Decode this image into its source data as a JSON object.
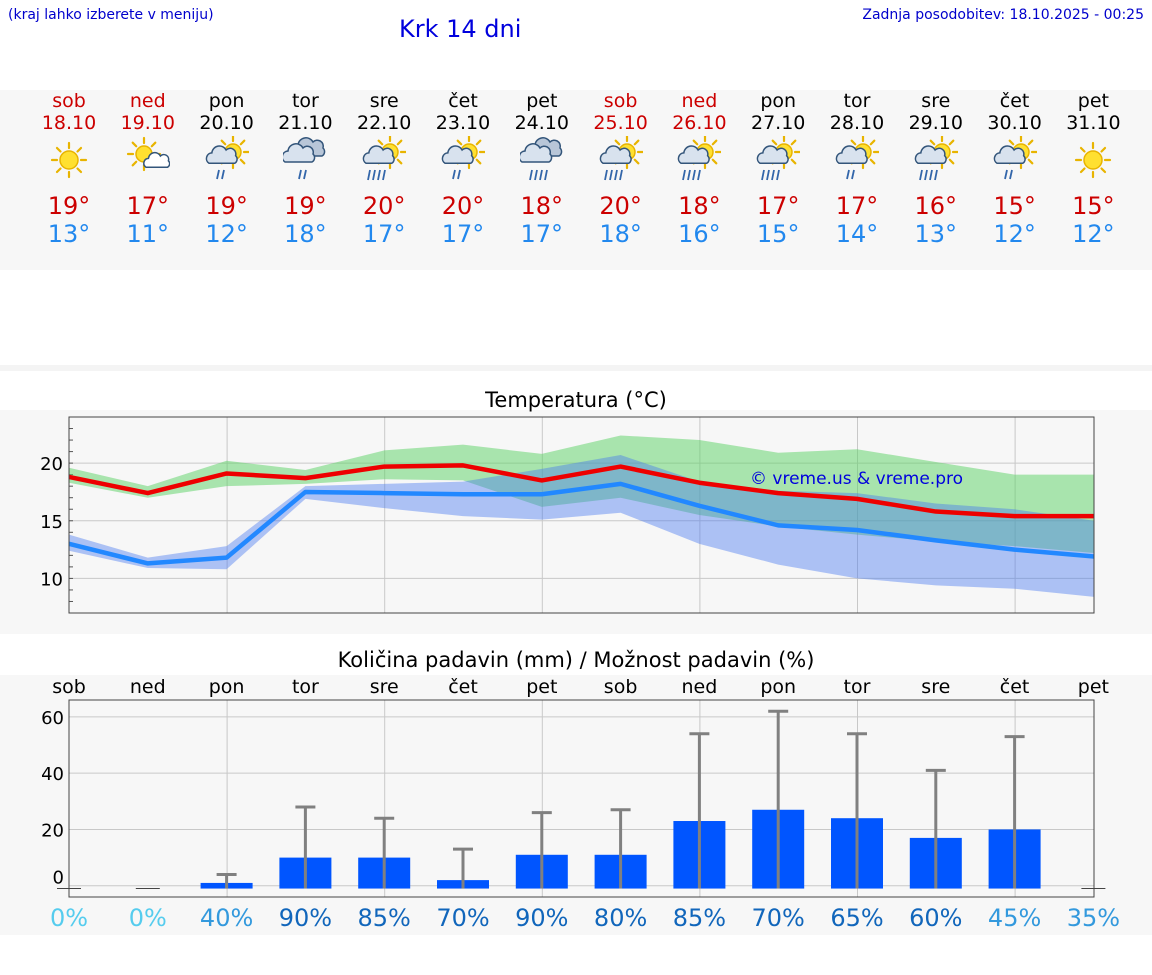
{
  "header": {
    "hint": "(kraj lahko izberete v meniju)",
    "title": "Krk 14 dni",
    "updated": "Zadnja posodobitev: 18.10.2025 - 00:25"
  },
  "colors": {
    "weekend": "#cc0000",
    "weekday": "#000000",
    "max": "#ee0000",
    "min": "#2288ff",
    "bar": "#0055ff"
  },
  "days": [
    {
      "name": "sob",
      "date": "18.10",
      "weekend": true,
      "icon": "sun-icon",
      "max": "19°",
      "min": "13°"
    },
    {
      "name": "ned",
      "date": "19.10",
      "weekend": true,
      "icon": "sun-cloud-icon",
      "max": "17°",
      "min": "11°"
    },
    {
      "name": "pon",
      "date": "20.10",
      "weekend": false,
      "icon": "sun-cloud-rain-icon",
      "max": "19°",
      "min": "12°"
    },
    {
      "name": "tor",
      "date": "21.10",
      "weekend": false,
      "icon": "cloud-rain-icon",
      "max": "19°",
      "min": "18°"
    },
    {
      "name": "sre",
      "date": "22.10",
      "weekend": false,
      "icon": "sun-cloud-heavy-rain-icon",
      "max": "20°",
      "min": "17°"
    },
    {
      "name": "čet",
      "date": "23.10",
      "weekend": false,
      "icon": "sun-cloud-rain-icon",
      "max": "20°",
      "min": "17°"
    },
    {
      "name": "pet",
      "date": "24.10",
      "weekend": false,
      "icon": "cloud-heavy-rain-icon",
      "max": "18°",
      "min": "17°"
    },
    {
      "name": "sob",
      "date": "25.10",
      "weekend": true,
      "icon": "sun-cloud-heavy-rain-icon",
      "max": "20°",
      "min": "18°"
    },
    {
      "name": "ned",
      "date": "26.10",
      "weekend": true,
      "icon": "sun-cloud-heavy-rain-icon",
      "max": "18°",
      "min": "16°"
    },
    {
      "name": "pon",
      "date": "27.10",
      "weekend": false,
      "icon": "sun-cloud-heavy-rain-icon",
      "max": "17°",
      "min": "15°"
    },
    {
      "name": "tor",
      "date": "28.10",
      "weekend": false,
      "icon": "sun-cloud-rain-icon",
      "max": "17°",
      "min": "14°"
    },
    {
      "name": "sre",
      "date": "29.10",
      "weekend": false,
      "icon": "sun-cloud-heavy-rain-icon",
      "max": "16°",
      "min": "13°"
    },
    {
      "name": "čet",
      "date": "30.10",
      "weekend": false,
      "icon": "sun-cloud-rain-icon",
      "max": "15°",
      "min": "12°"
    },
    {
      "name": "pet",
      "date": "31.10",
      "weekend": false,
      "icon": "sun-icon",
      "max": "15°",
      "min": "12°"
    }
  ],
  "chart_data": [
    {
      "type": "line",
      "title": "Temperatura (°C)",
      "watermark": "© vreme.us & vreme.pro",
      "ylim": [
        7,
        24
      ],
      "yticks": [
        10,
        15,
        20
      ],
      "grid": true,
      "categories": [
        "sob",
        "ned",
        "pon",
        "tor",
        "sre",
        "čet",
        "pet",
        "sob",
        "ned",
        "pon",
        "tor",
        "sre",
        "čet",
        "pet"
      ],
      "series": [
        {
          "name": "max",
          "values": [
            18.8,
            17.4,
            19.1,
            18.7,
            19.7,
            19.8,
            18.5,
            19.7,
            18.3,
            17.4,
            16.9,
            15.8,
            15.4,
            15.4
          ],
          "band_low": [
            18.3,
            17.0,
            18.0,
            18.2,
            18.6,
            18.5,
            16.2,
            17.0,
            15.5,
            14.5,
            13.8,
            13.2,
            12.8,
            12.2
          ],
          "band_high": [
            19.6,
            18.0,
            20.2,
            19.4,
            21.1,
            21.6,
            20.8,
            22.4,
            22.0,
            20.9,
            21.2,
            20.1,
            19.0,
            19.0
          ]
        },
        {
          "name": "min",
          "values": [
            13.0,
            11.3,
            11.8,
            17.5,
            17.4,
            17.3,
            17.3,
            18.2,
            16.3,
            14.6,
            14.2,
            13.3,
            12.5,
            11.9
          ],
          "band_low": [
            12.4,
            10.9,
            10.8,
            16.9,
            16.1,
            15.4,
            15.1,
            15.7,
            13.0,
            11.2,
            10.0,
            9.4,
            9.1,
            8.4
          ],
          "band_high": [
            13.8,
            11.8,
            12.8,
            18.0,
            18.2,
            18.4,
            19.5,
            20.7,
            18.4,
            17.6,
            17.4,
            16.5,
            16.0,
            15.0
          ]
        }
      ]
    },
    {
      "type": "bar",
      "title": "Količina padavin (mm) / Možnost padavin (%)",
      "ylim": [
        -4,
        66
      ],
      "yticks": [
        0,
        20,
        40,
        60
      ],
      "grid": true,
      "categories": [
        "sob",
        "ned",
        "pon",
        "tor",
        "sre",
        "čet",
        "pet",
        "sob",
        "ned",
        "pon",
        "tor",
        "sre",
        "čet",
        "pet"
      ],
      "values": [
        0,
        0,
        1,
        10,
        10,
        2,
        11,
        11,
        23,
        27,
        24,
        17,
        20,
        0
      ],
      "error_high": [
        0,
        0,
        4,
        28,
        24,
        13,
        26,
        27,
        54,
        62,
        54,
        41,
        53,
        0
      ],
      "probability": [
        "0%",
        "0%",
        "40%",
        "90%",
        "85%",
        "70%",
        "90%",
        "80%",
        "85%",
        "70%",
        "65%",
        "60%",
        "45%",
        "35%"
      ],
      "probability_colors": [
        "#55ccee",
        "#55ccee",
        "#3399dd",
        "#1166bb",
        "#1166bb",
        "#1166bb",
        "#1166bb",
        "#1166bb",
        "#1166bb",
        "#1166bb",
        "#1166bb",
        "#1166bb",
        "#3399dd",
        "#3399dd"
      ]
    }
  ]
}
